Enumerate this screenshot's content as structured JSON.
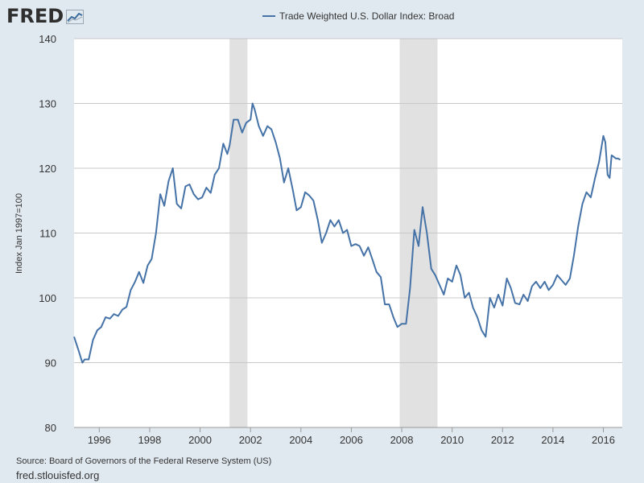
{
  "brand": {
    "logo_text": "FRED",
    "logo_icon": "line-chart-icon"
  },
  "footer": {
    "source": "Source: Board of Governors of the Federal Reserve System (US)",
    "site": "fred.stlouisfed.org"
  },
  "colors": {
    "line": "#4572a7",
    "recession": "#e1e1e1",
    "plot_bg": "#ffffff",
    "page_bg": "#e1e9f0",
    "grid": "#c8c8c8"
  },
  "chart_data": {
    "type": "line",
    "title": "",
    "legend": "top-center",
    "xlabel": "",
    "ylabel": "Index Jan 1997=100",
    "xlim": [
      1995.0,
      2016.75
    ],
    "ylim": [
      80,
      140
    ],
    "x_ticks": [
      1996,
      1998,
      2000,
      2002,
      2004,
      2006,
      2008,
      2010,
      2012,
      2014,
      2016
    ],
    "y_ticks": [
      80,
      90,
      100,
      110,
      120,
      130,
      140
    ],
    "grid": "horizontal",
    "recessions": [
      [
        2001.17,
        2001.88
      ],
      [
        2007.92,
        2009.42
      ]
    ],
    "series": [
      {
        "name": "Trade Weighted U.S. Dollar Index: Broad",
        "x": [
          1995.0,
          1995.17,
          1995.33,
          1995.42,
          1995.58,
          1995.75,
          1995.92,
          1996.08,
          1996.25,
          1996.42,
          1996.58,
          1996.75,
          1996.92,
          1997.08,
          1997.25,
          1997.42,
          1997.58,
          1997.75,
          1997.92,
          1998.08,
          1998.25,
          1998.42,
          1998.58,
          1998.75,
          1998.92,
          1999.08,
          1999.25,
          1999.42,
          1999.58,
          1999.75,
          1999.92,
          2000.08,
          2000.25,
          2000.42,
          2000.58,
          2000.75,
          2000.92,
          2001.08,
          2001.17,
          2001.33,
          2001.5,
          2001.67,
          2001.83,
          2002.0,
          2002.08,
          2002.17,
          2002.33,
          2002.5,
          2002.67,
          2002.83,
          2003.0,
          2003.17,
          2003.33,
          2003.5,
          2003.67,
          2003.83,
          2004.0,
          2004.17,
          2004.33,
          2004.5,
          2004.67,
          2004.83,
          2005.0,
          2005.17,
          2005.33,
          2005.5,
          2005.67,
          2005.83,
          2006.0,
          2006.17,
          2006.33,
          2006.5,
          2006.67,
          2006.83,
          2007.0,
          2007.17,
          2007.33,
          2007.5,
          2007.67,
          2007.83,
          2008.0,
          2008.17,
          2008.33,
          2008.5,
          2008.67,
          2008.83,
          2009.0,
          2009.17,
          2009.33,
          2009.5,
          2009.67,
          2009.83,
          2010.0,
          2010.17,
          2010.33,
          2010.5,
          2010.67,
          2010.83,
          2011.0,
          2011.17,
          2011.33,
          2011.5,
          2011.67,
          2011.83,
          2012.0,
          2012.17,
          2012.33,
          2012.5,
          2012.67,
          2012.83,
          2013.0,
          2013.17,
          2013.33,
          2013.5,
          2013.67,
          2013.83,
          2014.0,
          2014.17,
          2014.33,
          2014.5,
          2014.67,
          2014.83,
          2015.0,
          2015.17,
          2015.33,
          2015.5,
          2015.67,
          2015.83,
          2016.0,
          2016.08,
          2016.17,
          2016.25,
          2016.33,
          2016.5,
          2016.58,
          2016.67
        ],
        "y": [
          94.0,
          92.0,
          90.0,
          90.5,
          90.5,
          93.5,
          95.0,
          95.5,
          97.0,
          96.8,
          97.5,
          97.2,
          98.2,
          98.6,
          101.2,
          102.5,
          104.0,
          102.3,
          105.0,
          106.0,
          110.0,
          116.0,
          114.2,
          118.0,
          120.0,
          114.5,
          113.8,
          117.2,
          117.5,
          116.0,
          115.2,
          115.5,
          117.0,
          116.2,
          119.0,
          120.0,
          123.8,
          122.2,
          123.5,
          127.5,
          127.5,
          125.5,
          127.0,
          127.5,
          130.0,
          129.0,
          126.5,
          125.0,
          126.5,
          126.0,
          124.0,
          121.5,
          117.8,
          120.0,
          116.8,
          113.5,
          114.0,
          116.3,
          115.8,
          115.0,
          112.0,
          108.5,
          110.0,
          112.0,
          111.0,
          112.0,
          110.0,
          110.5,
          108.0,
          108.3,
          108.0,
          106.5,
          107.8,
          106.0,
          104.0,
          103.2,
          99.0,
          99.0,
          97.0,
          95.5,
          96.0,
          96.0,
          101.5,
          110.5,
          108.0,
          114.0,
          110.0,
          104.5,
          103.5,
          102.0,
          100.5,
          103.0,
          102.5,
          105.0,
          103.5,
          100.0,
          100.8,
          98.5,
          97.0,
          95.0,
          94.0,
          100.0,
          98.5,
          100.5,
          98.8,
          103.0,
          101.5,
          99.2,
          99.0,
          100.5,
          99.5,
          101.8,
          102.5,
          101.5,
          102.5,
          101.2,
          102.0,
          103.5,
          102.8,
          102.0,
          103.0,
          106.5,
          111.0,
          114.5,
          116.3,
          115.5,
          118.5,
          121.0,
          125.0,
          124.0,
          119.0,
          118.5,
          122.0,
          121.5,
          121.5,
          121.3
        ]
      }
    ]
  }
}
